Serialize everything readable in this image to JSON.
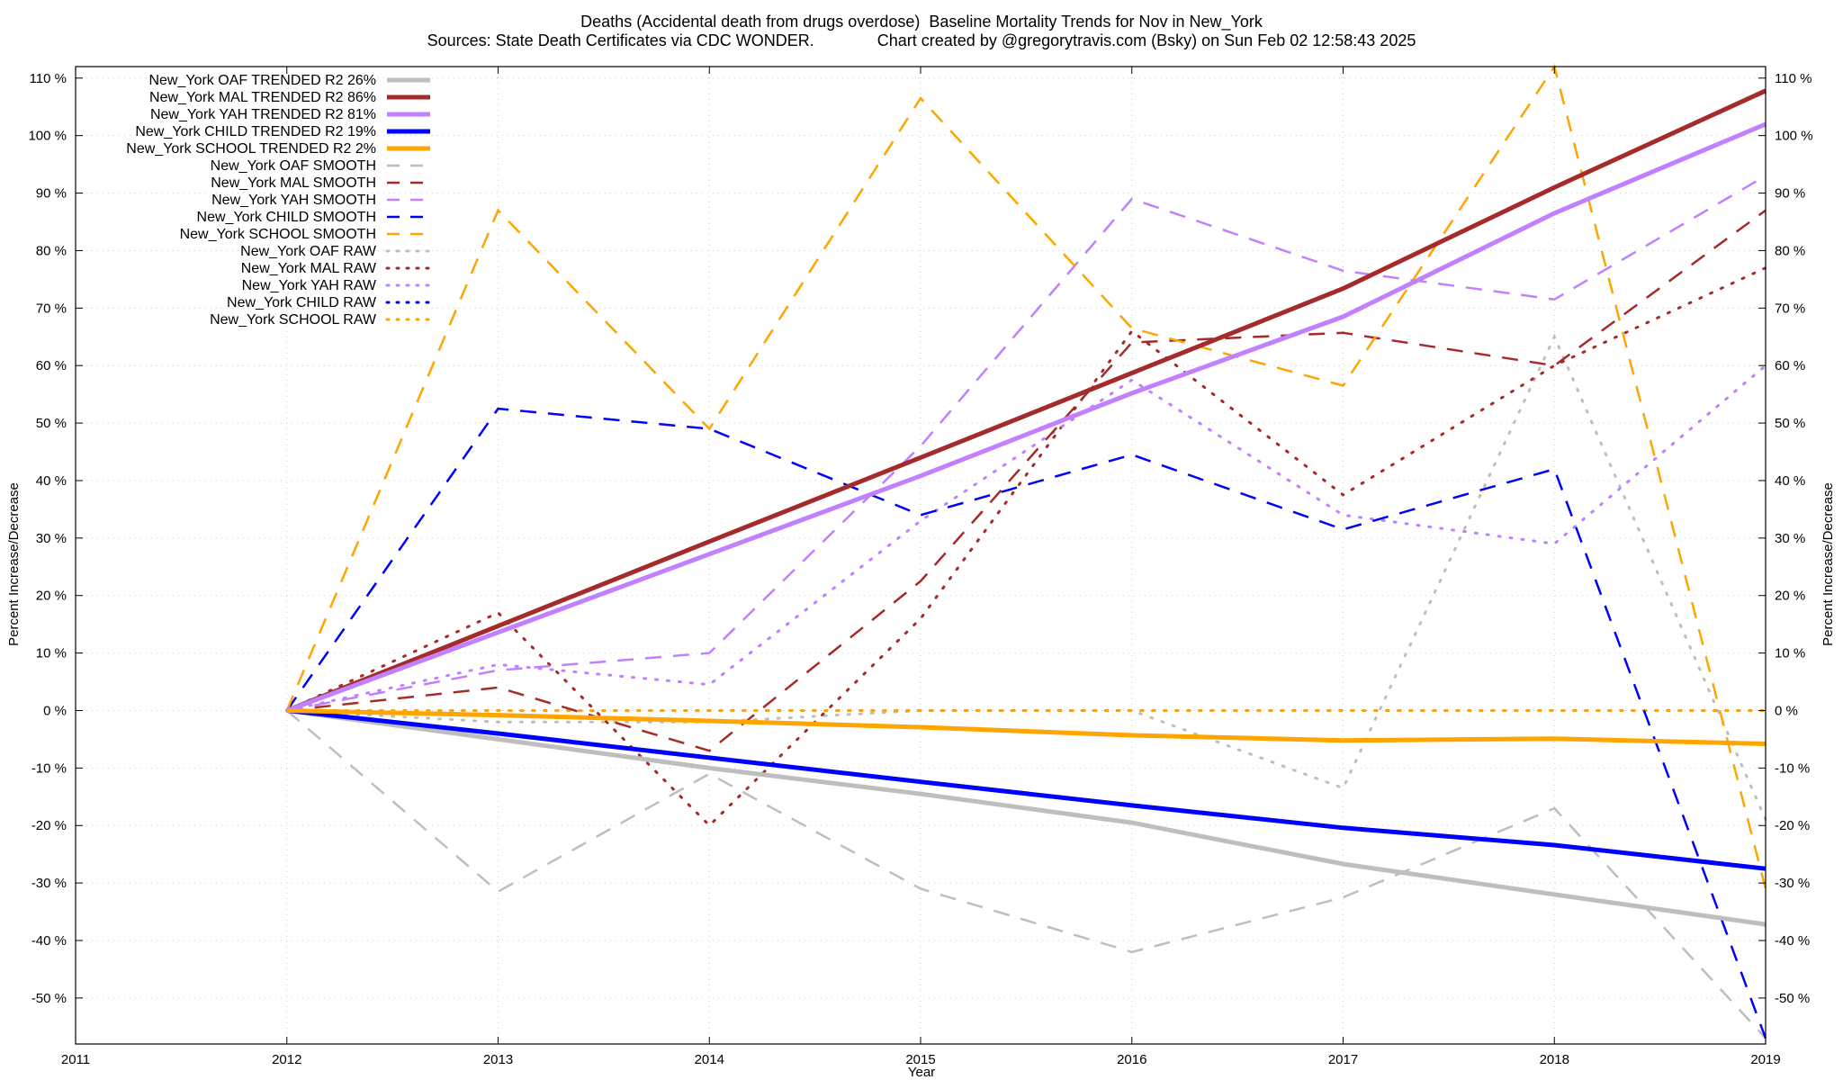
{
  "chart_data": {
    "type": "line",
    "title": "Deaths (Accidental death from drugs overdose)  Baseline Mortality Trends for Nov in New_York",
    "subtitle": "Sources: State Death Certificates via CDC WONDER.              Chart created by @gregorytravis.com (Bsky) on Sun Feb 02 12:58:43 2025",
    "xlabel": "Year",
    "ylabel": "Percent Increase/Decrease",
    "y2label": "Percent Increase/Decrease",
    "xlim": [
      2011,
      2019
    ],
    "ylim": [
      -58,
      112
    ],
    "x_ticks": [
      2011,
      2012,
      2013,
      2014,
      2015,
      2016,
      2017,
      2018,
      2019
    ],
    "y_ticks": [
      -50,
      -40,
      -30,
      -20,
      -10,
      0,
      10,
      20,
      30,
      40,
      50,
      60,
      70,
      80,
      90,
      100,
      110
    ],
    "tick_format": "%",
    "grid": true,
    "legend_position": "top-left",
    "colors": {
      "OAF": "#bebebe",
      "MAL": "#a52a2a",
      "YAH": "#c080ff",
      "CHILD": "#0000ff",
      "SCHOOL": "#ffa500"
    },
    "x": [
      2012,
      2013,
      2014,
      2015,
      2016,
      2017,
      2018,
      2019
    ],
    "series": [
      {
        "name": "New_York OAF TRENDED R2  26%",
        "group": "OAF",
        "style": "trend",
        "values": [
          0,
          -5,
          -10,
          -14.5,
          -19.5,
          -26.7,
          -32,
          -37.2
        ]
      },
      {
        "name": "New_York MAL TRENDED R2  86%",
        "group": "MAL",
        "style": "trend",
        "values": [
          0,
          14.7,
          29.4,
          44,
          58.7,
          73.4,
          91,
          107.8
        ]
      },
      {
        "name": "New_York YAH TRENDED R2  81%",
        "group": "YAH",
        "style": "trend",
        "values": [
          0,
          13.6,
          27.2,
          40.8,
          55.2,
          68.5,
          86.5,
          102
        ]
      },
      {
        "name": "New_York CHILD TRENDED R2  19%",
        "group": "CHILD",
        "style": "trend",
        "values": [
          0,
          -4,
          -8.2,
          -12.4,
          -16.5,
          -20.4,
          -23.4,
          -27.5
        ]
      },
      {
        "name": "New_York SCHOOL TRENDED R2  2%",
        "group": "SCHOOL",
        "style": "trend",
        "values": [
          0,
          -0.8,
          -1.8,
          -2.9,
          -4.3,
          -5.2,
          -4.9,
          -5.8
        ]
      },
      {
        "name": "New_York OAF SMOOTH",
        "group": "OAF",
        "style": "smooth",
        "values": [
          0,
          -31.5,
          -11,
          -31,
          -42,
          -32.5,
          -17,
          -57
        ]
      },
      {
        "name": "New_York MAL SMOOTH",
        "group": "MAL",
        "style": "smooth",
        "values": [
          0,
          4,
          -7,
          22.5,
          64,
          65.7,
          60,
          87
        ]
      },
      {
        "name": "New_York YAH SMOOTH",
        "group": "YAH",
        "style": "smooth",
        "values": [
          0,
          7,
          10,
          46,
          89,
          76.5,
          71.5,
          93
        ]
      },
      {
        "name": "New_York CHILD SMOOTH",
        "group": "CHILD",
        "style": "smooth",
        "values": [
          0,
          52.5,
          49,
          34,
          44.5,
          31.5,
          42,
          -57
        ]
      },
      {
        "name": "New_York SCHOOL SMOOTH",
        "group": "SCHOOL",
        "style": "smooth",
        "values": [
          0,
          87,
          49,
          106.5,
          66.5,
          56.5,
          112,
          -31
        ]
      },
      {
        "name": "New_York OAF RAW",
        "group": "OAF",
        "style": "raw",
        "values": [
          0,
          -2,
          -2,
          0,
          0,
          -13.5,
          65,
          -19
        ]
      },
      {
        "name": "New_York MAL RAW",
        "group": "MAL",
        "style": "raw",
        "values": [
          0,
          17,
          -20,
          16,
          66,
          37.5,
          60,
          77
        ]
      },
      {
        "name": "New_York YAH RAW",
        "group": "YAH",
        "style": "raw",
        "values": [
          0,
          8,
          4.5,
          33,
          57.5,
          34,
          29,
          60
        ]
      },
      {
        "name": "New_York CHILD RAW",
        "group": "CHILD",
        "style": "raw",
        "values": [
          0,
          0,
          0,
          0,
          0,
          0,
          0,
          0
        ]
      },
      {
        "name": "New_York SCHOOL RAW",
        "group": "SCHOOL",
        "style": "raw",
        "values": [
          0,
          0,
          0,
          0,
          0,
          0,
          0,
          0
        ]
      }
    ]
  }
}
